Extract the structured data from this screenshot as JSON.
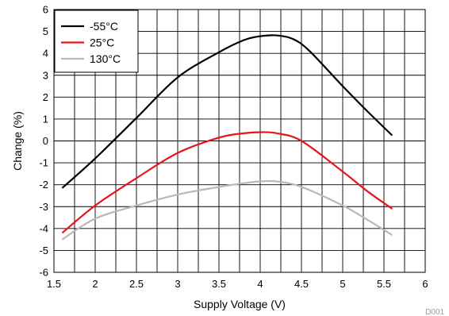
{
  "chart_data": {
    "type": "line",
    "title": "",
    "xlabel": "Supply Voltage (V)",
    "ylabel": "Change (%)",
    "xlim": [
      1.5,
      6
    ],
    "ylim": [
      -6,
      6
    ],
    "xticks": [
      1.5,
      2,
      2.5,
      3,
      3.5,
      4,
      4.5,
      5,
      5.5,
      6
    ],
    "xtick_labels": [
      "1.5",
      "2",
      "2.5",
      "3",
      "3.5",
      "4",
      "4.5",
      "5",
      "5.5",
      "6"
    ],
    "yticks": [
      -6,
      -5,
      -4,
      -3,
      -2,
      -1,
      0,
      1,
      2,
      3,
      4,
      5,
      6
    ],
    "ytick_labels": [
      "-6",
      "-5",
      "-4",
      "-3",
      "-2",
      "-1",
      "0",
      "1",
      "2",
      "3",
      "4",
      "5",
      "6"
    ],
    "grid": true,
    "minor_grid_x": true,
    "legend_position": "top-left",
    "series": [
      {
        "name": "-55°C",
        "color": "#000000",
        "x": [
          1.6,
          2.0,
          2.5,
          3.0,
          3.5,
          3.8,
          4.0,
          4.2,
          4.4,
          4.6,
          5.0,
          5.3,
          5.6
        ],
        "y": [
          -2.15,
          -0.8,
          1.05,
          2.9,
          4.05,
          4.6,
          4.78,
          4.82,
          4.65,
          4.1,
          2.5,
          1.35,
          0.25
        ]
      },
      {
        "name": "25°C",
        "color": "#e8141a",
        "x": [
          1.6,
          2.0,
          2.5,
          3.0,
          3.5,
          3.8,
          4.0,
          4.2,
          4.5,
          5.0,
          5.3,
          5.6
        ],
        "y": [
          -4.2,
          -2.95,
          -1.7,
          -0.55,
          0.15,
          0.35,
          0.4,
          0.35,
          0.0,
          -1.4,
          -2.3,
          -3.1
        ]
      },
      {
        "name": "130°C",
        "color": "#b8b8b8",
        "x": [
          1.6,
          2.0,
          2.5,
          3.0,
          3.5,
          3.8,
          4.0,
          4.2,
          4.5,
          5.0,
          5.3,
          5.6
        ],
        "y": [
          -4.5,
          -3.55,
          -2.95,
          -2.45,
          -2.1,
          -1.93,
          -1.85,
          -1.85,
          -2.1,
          -2.95,
          -3.6,
          -4.3
        ]
      }
    ],
    "footnote": "D001"
  }
}
